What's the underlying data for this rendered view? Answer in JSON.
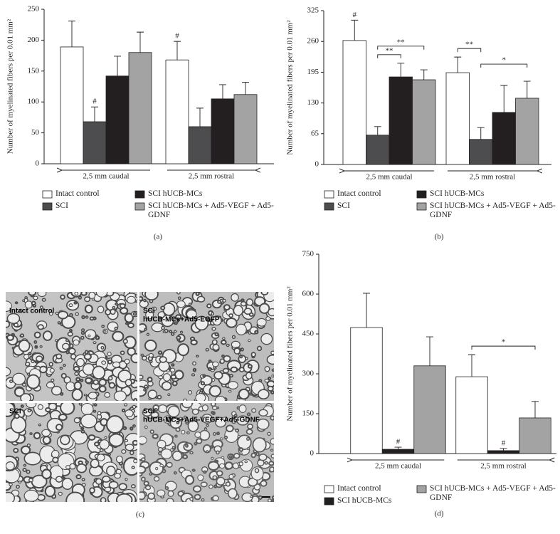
{
  "chart_data": [
    {
      "type": "bar",
      "panel_label": "(a)",
      "ylabel": "Number of myelinated fibers per 0.01 mm²",
      "categories": [
        "2,5 mm caudal",
        "2,5 mm rostral"
      ],
      "ylim": [
        0,
        250
      ],
      "yticks": [
        0,
        50,
        100,
        150,
        200,
        250
      ],
      "series": [
        {
          "name": "Intact control",
          "color": "#ffffff",
          "values": [
            189,
            168
          ],
          "errors": [
            42,
            30
          ],
          "markers": [
            null,
            "#"
          ]
        },
        {
          "name": "SCI",
          "color": "#4d4d4f",
          "values": [
            68,
            60
          ],
          "errors": [
            24,
            30
          ],
          "markers": [
            "#",
            null
          ]
        },
        {
          "name": "SCI hUCB-MCs",
          "color": "#231f20",
          "values": [
            142,
            105
          ],
          "errors": [
            32,
            23
          ]
        },
        {
          "name": "SCI hUCB-MCs + Ad5-VEGF + Ad5-GDNF",
          "color": "#a3a3a3",
          "values": [
            180,
            112
          ],
          "errors": [
            33,
            20
          ]
        }
      ]
    },
    {
      "type": "bar",
      "panel_label": "(b)",
      "ylabel": "Number of myelinated fibers per 0.01 mm²",
      "categories": [
        "2,5 mm caudal",
        "2,5 mm rostral"
      ],
      "ylim": [
        0,
        325
      ],
      "yticks": [
        0,
        65,
        130,
        195,
        260,
        325
      ],
      "series": [
        {
          "name": "Intact control",
          "color": "#ffffff",
          "values": [
            262,
            194
          ],
          "errors": [
            43,
            33
          ],
          "markers": [
            "#",
            null
          ]
        },
        {
          "name": "SCI",
          "color": "#4d4d4f",
          "values": [
            62,
            53
          ],
          "errors": [
            18,
            25
          ]
        },
        {
          "name": "SCI hUCB-MCs",
          "color": "#231f20",
          "values": [
            185,
            110
          ],
          "errors": [
            29,
            57
          ]
        },
        {
          "name": "SCI hUCB-MCs + Ad5-VEGF + Ad5-GDNF",
          "color": "#a3a3a3",
          "values": [
            179,
            140
          ],
          "errors": [
            21,
            36
          ]
        }
      ],
      "significance": [
        {
          "label": "**",
          "category": 0,
          "from": 1,
          "to": 2
        },
        {
          "label": "**",
          "category": 0,
          "from": 1,
          "to": 3
        },
        {
          "label": "**",
          "category": 1,
          "from": 0,
          "to": 1
        },
        {
          "label": "*",
          "category": 1,
          "from": 1,
          "to": 3
        }
      ]
    },
    {
      "type": "bar",
      "panel_label": "(d)",
      "ylabel": "Number of myelinated fibers per 0.01 mm²",
      "categories": [
        "2,5 mm caudal",
        "2,5 mm rostral"
      ],
      "ylim": [
        0,
        750
      ],
      "yticks": [
        0,
        150,
        300,
        450,
        600,
        750
      ],
      "series": [
        {
          "name": "Intact control",
          "color": "#ffffff",
          "values": [
            474,
            289
          ],
          "errors": [
            129,
            83
          ]
        },
        {
          "name": "SCI hUCB-MCs",
          "color": "#231f20",
          "values": [
            16,
            11
          ],
          "errors": [
            8,
            8
          ],
          "markers": [
            "#",
            "#"
          ]
        },
        {
          "name": "SCI hUCB-MCs + Ad5-VEGF + Ad5-GDNF",
          "color": "#a3a3a3",
          "values": [
            330,
            134
          ],
          "errors": [
            109,
            62
          ]
        }
      ],
      "significance": [
        {
          "label": "*",
          "category": 1,
          "from": 0,
          "to": 2
        }
      ]
    }
  ],
  "micrographs": {
    "panel_label": "(c)",
    "panels": [
      {
        "lines": [
          "Intact control"
        ]
      },
      {
        "lines": [
          "SCI",
          "hUCB-MCs+Ad5-EGFP"
        ]
      },
      {
        "lines": [
          "SCI"
        ]
      },
      {
        "lines": [
          "SCI",
          "hUCB-MCs+Ad5-VEGF+Ad5-GDNF"
        ]
      }
    ]
  }
}
